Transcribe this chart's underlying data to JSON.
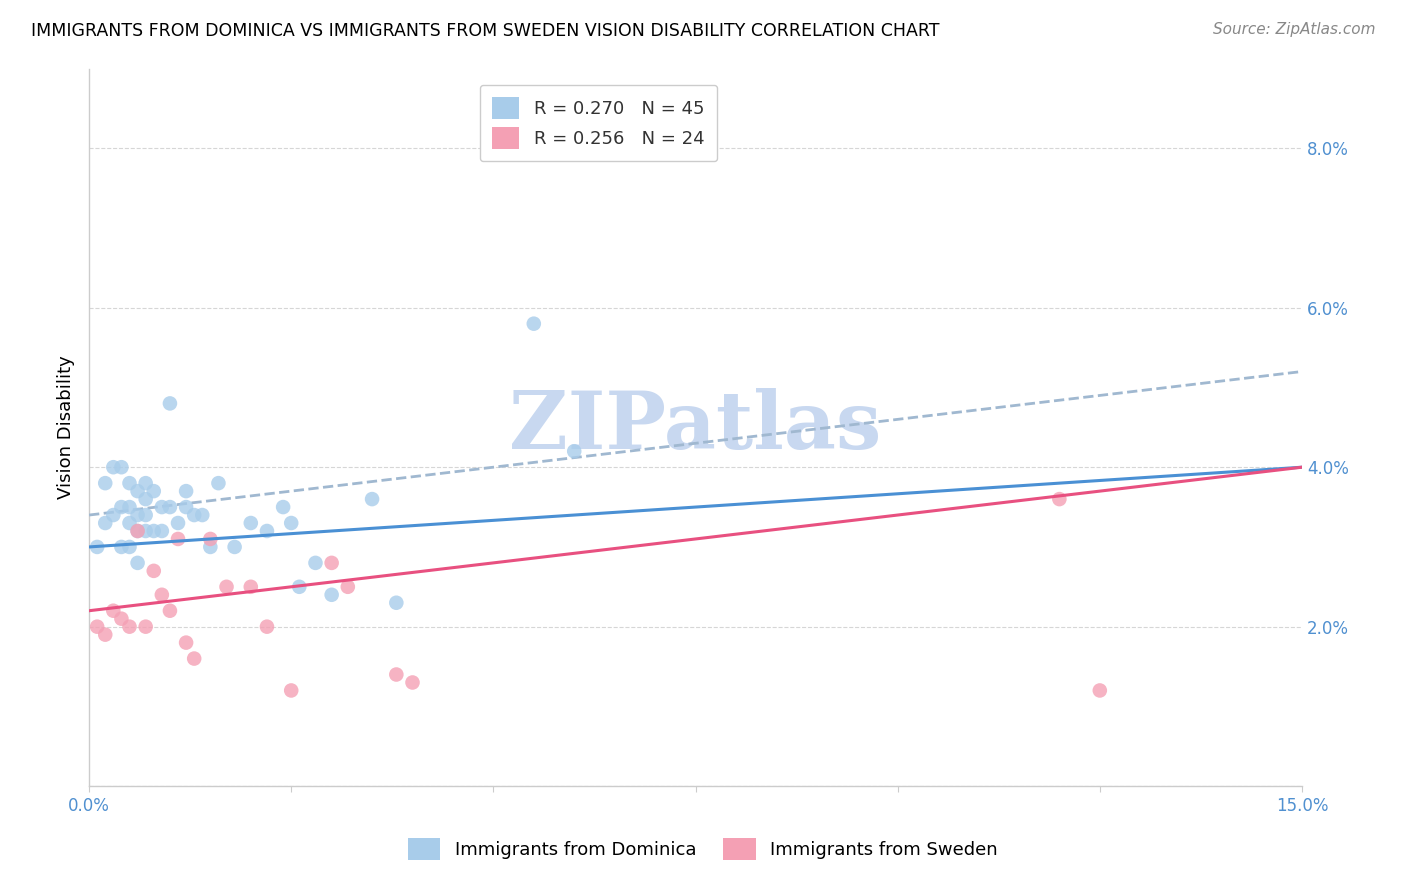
{
  "title": "IMMIGRANTS FROM DOMINICA VS IMMIGRANTS FROM SWEDEN VISION DISABILITY CORRELATION CHART",
  "source": "Source: ZipAtlas.com",
  "ylabel": "Vision Disability",
  "xlim": [
    0.0,
    0.15
  ],
  "ylim": [
    0.0,
    0.09
  ],
  "dominica_R": 0.27,
  "dominica_N": 45,
  "sweden_R": 0.256,
  "sweden_N": 24,
  "dominica_color": "#A8CCEA",
  "sweden_color": "#F4A0B4",
  "trend_dominica_solid_color": "#4A90D4",
  "trend_dominica_dashed_color": "#A0B8D0",
  "trend_sweden_color": "#E85080",
  "background_color": "#FFFFFF",
  "watermark": "ZIPatlas",
  "watermark_color": "#C8D8F0",
  "right_tick_color": "#5090D0",
  "dominica_x": [
    0.001,
    0.002,
    0.002,
    0.003,
    0.003,
    0.004,
    0.004,
    0.004,
    0.005,
    0.005,
    0.005,
    0.005,
    0.006,
    0.006,
    0.006,
    0.006,
    0.007,
    0.007,
    0.007,
    0.007,
    0.008,
    0.008,
    0.009,
    0.009,
    0.01,
    0.01,
    0.011,
    0.012,
    0.012,
    0.013,
    0.014,
    0.015,
    0.016,
    0.018,
    0.02,
    0.022,
    0.024,
    0.025,
    0.026,
    0.028,
    0.03,
    0.035,
    0.038,
    0.055,
    0.06
  ],
  "dominica_y": [
    0.03,
    0.033,
    0.038,
    0.034,
    0.04,
    0.03,
    0.035,
    0.04,
    0.03,
    0.033,
    0.035,
    0.038,
    0.028,
    0.032,
    0.034,
    0.037,
    0.032,
    0.034,
    0.036,
    0.038,
    0.032,
    0.037,
    0.032,
    0.035,
    0.035,
    0.048,
    0.033,
    0.035,
    0.037,
    0.034,
    0.034,
    0.03,
    0.038,
    0.03,
    0.033,
    0.032,
    0.035,
    0.033,
    0.025,
    0.028,
    0.024,
    0.036,
    0.023,
    0.058,
    0.042
  ],
  "sweden_x": [
    0.001,
    0.002,
    0.003,
    0.004,
    0.005,
    0.006,
    0.007,
    0.008,
    0.009,
    0.01,
    0.011,
    0.012,
    0.013,
    0.015,
    0.017,
    0.02,
    0.022,
    0.025,
    0.03,
    0.032,
    0.038,
    0.04,
    0.12,
    0.125
  ],
  "sweden_y": [
    0.02,
    0.019,
    0.022,
    0.021,
    0.02,
    0.032,
    0.02,
    0.027,
    0.024,
    0.022,
    0.031,
    0.018,
    0.016,
    0.031,
    0.025,
    0.025,
    0.02,
    0.012,
    0.028,
    0.025,
    0.014,
    0.013,
    0.036,
    0.012
  ],
  "trend_dom_x0": 0.0,
  "trend_dom_y0": 0.03,
  "trend_dom_x1": 0.15,
  "trend_dom_y1": 0.04,
  "trend_dom_dash_x0": 0.0,
  "trend_dom_dash_y0": 0.034,
  "trend_dom_dash_x1": 0.15,
  "trend_dom_dash_y1": 0.052,
  "trend_swe_x0": 0.0,
  "trend_swe_y0": 0.022,
  "trend_swe_x1": 0.15,
  "trend_swe_y1": 0.04
}
